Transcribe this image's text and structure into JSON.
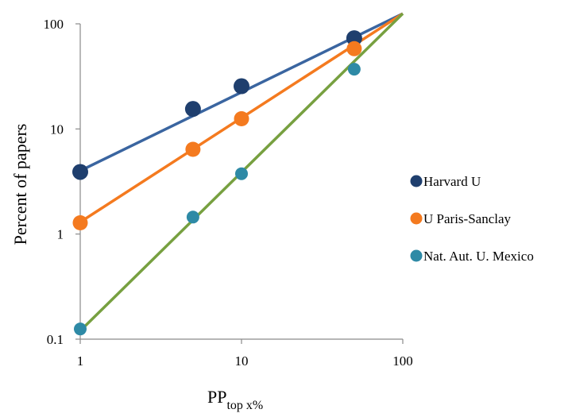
{
  "chart_data": {
    "type": "scatter",
    "xscale": "log",
    "yscale": "log",
    "xlim": [
      1,
      100
    ],
    "ylim": [
      0.1,
      100
    ],
    "xticks": [
      "1",
      "10",
      "100"
    ],
    "yticks": [
      "0.1",
      "1",
      "10",
      "100"
    ],
    "xlabel": "PP",
    "xlabel_sub": "top x%",
    "ylabel": "Percent of papers",
    "grid": false,
    "legend_position": "right",
    "x": [
      1,
      5,
      10,
      50
    ],
    "series": [
      {
        "name": "Harvard U",
        "color": "#1f3f6e",
        "line_color": "#3a65a0",
        "values": [
          3.9,
          15.5,
          25.5,
          73
        ],
        "fit": [
          [
            1,
            4.0
          ],
          [
            100,
            125
          ]
        ]
      },
      {
        "name": "U Paris-Sanclay",
        "color": "#f47a1f",
        "line_color": "#f47a1f",
        "values": [
          1.28,
          6.4,
          12.5,
          58
        ],
        "fit": [
          [
            1,
            1.3
          ],
          [
            100,
            125
          ]
        ]
      },
      {
        "name": "Nat. Aut. U. Mexico",
        "color": "#2e8aa6",
        "line_color": "#77a040",
        "values": [
          0.125,
          1.45,
          3.75,
          37
        ],
        "fit": [
          [
            1,
            0.12
          ],
          [
            100,
            125
          ]
        ]
      }
    ]
  }
}
